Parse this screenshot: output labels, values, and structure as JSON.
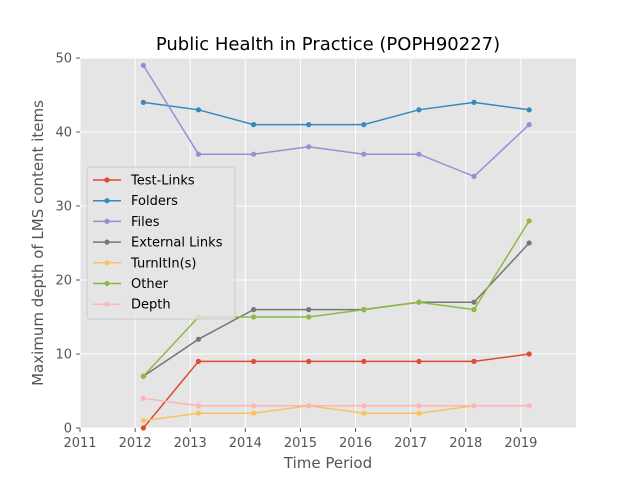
{
  "chart_data": {
    "type": "line",
    "title": "Public Health in Practice (POPH90227)",
    "xlabel": "Time Period",
    "ylabel": "Maximum depth of LMS content items",
    "xlim": [
      2011,
      2020
    ],
    "ylim": [
      0,
      50
    ],
    "xticks": [
      2011,
      2012,
      2013,
      2014,
      2015,
      2016,
      2017,
      2018,
      2019
    ],
    "yticks": [
      0,
      10,
      20,
      30,
      40,
      50
    ],
    "grid": true,
    "legend_position": "left-center",
    "x": [
      2012.15,
      2013.15,
      2014.15,
      2015.15,
      2016.15,
      2017.15,
      2018.15,
      2019.15
    ],
    "series": [
      {
        "name": "Test-Links",
        "color": "#E24A33",
        "values": [
          0,
          9,
          9,
          9,
          9,
          9,
          9,
          10
        ]
      },
      {
        "name": "Folders",
        "color": "#348ABD",
        "values": [
          44,
          43,
          41,
          41,
          41,
          43,
          44,
          43
        ]
      },
      {
        "name": "Files",
        "color": "#988ED5",
        "values": [
          49,
          37,
          37,
          38,
          37,
          37,
          34,
          41
        ]
      },
      {
        "name": "External Links",
        "color": "#777777",
        "values": [
          7,
          12,
          16,
          16,
          16,
          17,
          17,
          25
        ]
      },
      {
        "name": "TurnItIn(s)",
        "color": "#FBC15E",
        "values": [
          1,
          2,
          2,
          3,
          2,
          2,
          3,
          3
        ]
      },
      {
        "name": "Other",
        "color": "#8EBA42",
        "values": [
          7,
          15,
          15,
          15,
          16,
          17,
          16,
          28
        ]
      },
      {
        "name": "Depth",
        "color": "#FFB5B8",
        "values": [
          4,
          3,
          3,
          3,
          3,
          3,
          3,
          3
        ]
      }
    ]
  },
  "style": {
    "plot_background": "#E5E5E5",
    "grid_color": "#FFFFFF"
  }
}
